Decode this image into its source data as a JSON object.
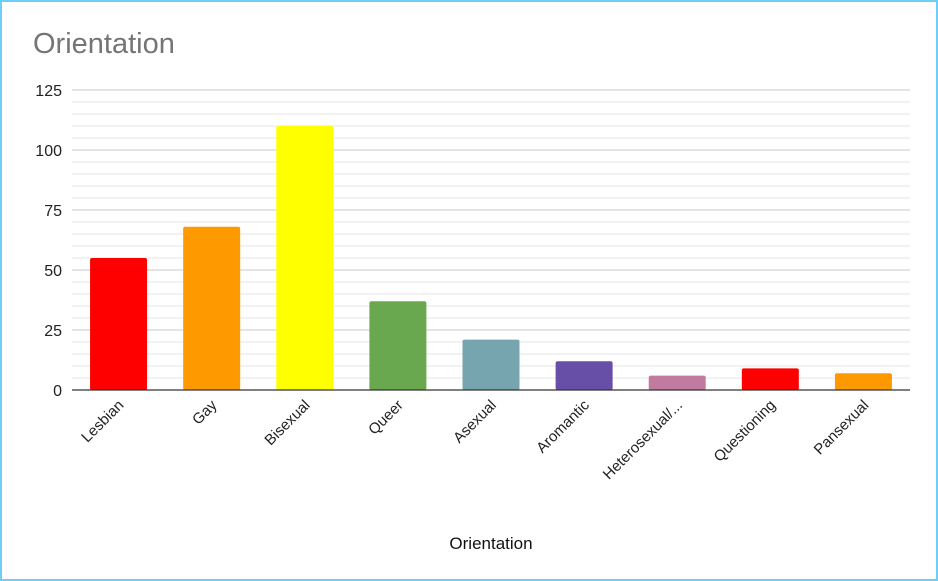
{
  "chart_data": {
    "type": "bar",
    "title": "Orientation",
    "xlabel": "Orientation",
    "ylabel": "",
    "categories": [
      "Lesbian",
      "Gay",
      "Bisexual",
      "Queer",
      "Asexual",
      "Aromantic",
      "Heterosexual/...",
      "Questioning",
      "Pansexual"
    ],
    "values": [
      55,
      68,
      110,
      37,
      21,
      12,
      6,
      9,
      7
    ],
    "colors": [
      "#ff0000",
      "#ff9900",
      "#ffff00",
      "#6aa84f",
      "#76a5af",
      "#674ea7",
      "#c27ba0",
      "#ff0000",
      "#ff9900"
    ],
    "ylim": [
      0,
      125
    ],
    "yticks": [
      0,
      25,
      50,
      75,
      100,
      125
    ],
    "grid": true,
    "legend": "none"
  }
}
